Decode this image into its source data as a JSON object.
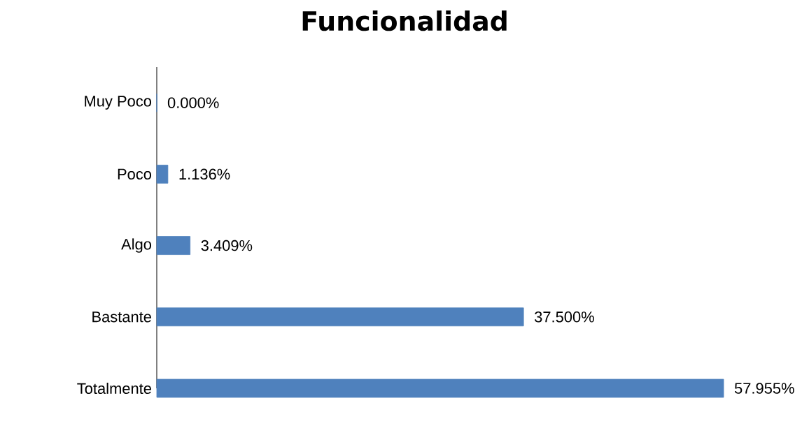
{
  "chart_data": {
    "type": "bar",
    "orientation": "horizontal",
    "title": "Funcionalidad",
    "categories": [
      "Muy Poco",
      "Poco",
      "Algo",
      "Bastante",
      "Totalmente"
    ],
    "values": [
      0.0,
      1.136,
      3.409,
      37.5,
      57.955
    ],
    "value_labels": [
      "0.000%",
      "1.136%",
      "3.409%",
      "37.500%",
      "57.955%"
    ],
    "color": "#4f81bd",
    "tick_labels": "y",
    "grid": false
  }
}
